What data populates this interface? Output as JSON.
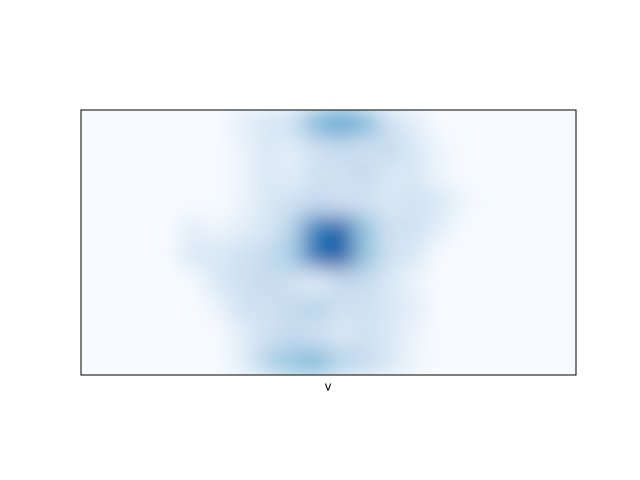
{
  "chart_data": {
    "type": "heatmap",
    "xlabel": "v",
    "colormap": "Blues",
    "zlim": [
      0,
      1
    ],
    "z": [
      [
        0,
        0,
        0,
        0,
        0,
        0,
        0.1,
        0.15,
        0.2,
        0.45,
        0.55,
        0.45,
        0.2,
        0.1,
        0,
        0,
        0,
        0,
        0,
        0
      ],
      [
        0,
        0,
        0,
        0,
        0,
        0,
        0.05,
        0.15,
        0.1,
        0.2,
        0.25,
        0.2,
        0.25,
        0.15,
        0.05,
        0,
        0,
        0,
        0,
        0
      ],
      [
        0,
        0,
        0,
        0,
        0,
        0,
        0.05,
        0.15,
        0.1,
        0.2,
        0.2,
        0.25,
        0.15,
        0.15,
        0.05,
        0,
        0,
        0,
        0,
        0
      ],
      [
        0,
        0,
        0,
        0,
        0,
        0,
        0.05,
        0.15,
        0.2,
        0.25,
        0.2,
        0.2,
        0.15,
        0.2,
        0.15,
        0.05,
        0,
        0,
        0,
        0
      ],
      [
        0,
        0,
        0,
        0,
        0.1,
        0.05,
        0.1,
        0.15,
        0.3,
        0.7,
        0.8,
        0.4,
        0.2,
        0.2,
        0.1,
        0,
        0,
        0,
        0,
        0
      ],
      [
        0,
        0,
        0,
        0,
        0.15,
        0.15,
        0.2,
        0.25,
        0.35,
        0.75,
        0.85,
        0.4,
        0.2,
        0.15,
        0,
        0,
        0,
        0,
        0,
        0
      ],
      [
        0,
        0,
        0,
        0,
        0,
        0.15,
        0.2,
        0.25,
        0.2,
        0.1,
        0.25,
        0.25,
        0.15,
        0.05,
        0,
        0,
        0,
        0,
        0,
        0
      ],
      [
        0,
        0,
        0,
        0,
        0,
        0.05,
        0.2,
        0.2,
        0.25,
        0.3,
        0.2,
        0.2,
        0.15,
        0.1,
        0,
        0,
        0,
        0,
        0,
        0
      ],
      [
        0,
        0,
        0,
        0,
        0,
        0,
        0.1,
        0.2,
        0.25,
        0.2,
        0.15,
        0.2,
        0.15,
        0.05,
        0,
        0,
        0,
        0,
        0,
        0
      ],
      [
        0,
        0,
        0,
        0,
        0,
        0,
        0.1,
        0.3,
        0.4,
        0.45,
        0.3,
        0.25,
        0.15,
        0.05,
        0,
        0,
        0,
        0,
        0,
        0
      ]
    ]
  }
}
